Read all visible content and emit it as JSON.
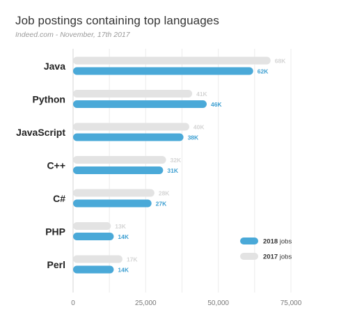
{
  "chart_data": {
    "type": "bar",
    "title": "Job postings containing top languages",
    "subtitle": "Indeed.com - November, 17th 2017",
    "categories": [
      "Java",
      "Python",
      "JavaScript",
      "C++",
      "C#",
      "PHP",
      "Perl"
    ],
    "series": [
      {
        "name": "2017 jobs",
        "color": "#e3e3e3",
        "label_color": "#d4d4d4",
        "values": [
          68000,
          41000,
          40000,
          32000,
          28000,
          13000,
          17000
        ],
        "labels": [
          "68K",
          "41K",
          "40K",
          "32K",
          "28K",
          "13K",
          "17K"
        ]
      },
      {
        "name": "2018 jobs",
        "color": "#4aa9d8",
        "label_color": "#3d9fd1",
        "values": [
          62000,
          46000,
          38000,
          31000,
          27000,
          14000,
          14000
        ],
        "labels": [
          "62K",
          "46K",
          "38K",
          "31K",
          "27K",
          "14K",
          "14K"
        ]
      }
    ],
    "legend": {
      "position": "bottom-right",
      "items": [
        {
          "name": "2018 jobs",
          "bold": "2018",
          "rest": " jobs"
        },
        {
          "name": "2017 jobs",
          "bold": "2017",
          "rest": " jobs"
        }
      ]
    },
    "xlim": [
      0,
      75000
    ],
    "xticks": [
      0,
      25000,
      50000,
      75000
    ],
    "xtick_labels": [
      "0",
      "25,000",
      "50,000",
      "75,000"
    ],
    "grid": true,
    "orientation": "horizontal"
  }
}
